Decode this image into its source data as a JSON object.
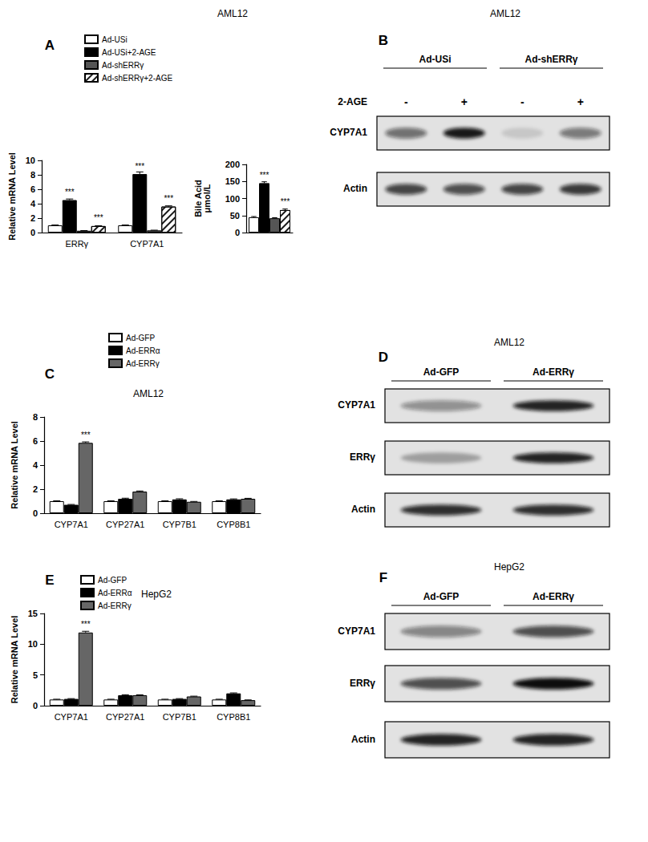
{
  "chart_data": [
    {
      "panel": "A",
      "title": "AML12",
      "type": "bar",
      "y_label": "Relative mRNA Level",
      "categories": [
        "ERRγ",
        "CYP7A1"
      ],
      "ylim": [
        0,
        10
      ],
      "yticks": [
        0,
        2,
        4,
        6,
        8,
        10
      ],
      "grid": false,
      "legend": "top-left",
      "series": [
        {
          "name": "Ad-USi",
          "color": "#ffffff",
          "values": [
            1,
            1
          ],
          "errors": [
            0.05,
            0.05
          ],
          "annotations": [
            null,
            null
          ]
        },
        {
          "name": "Ad-USi+2-AGE",
          "color": "#000000",
          "values": [
            4.5,
            8.1
          ],
          "errors": [
            0.15,
            0.3
          ],
          "annotations": [
            "***",
            "***"
          ]
        },
        {
          "name": "Ad-shERRγ",
          "color": "#555555",
          "values": [
            0.25,
            0.3
          ],
          "errors": [
            0.03,
            0.03
          ],
          "annotations": [
            null,
            null
          ]
        },
        {
          "name": "Ad-shERRγ+2-AGE",
          "color": "#ffffff",
          "marker": "hatched",
          "values": [
            0.9,
            3.6
          ],
          "errors": [
            0.05,
            0.1
          ],
          "annotations": [
            "***",
            "***"
          ]
        }
      ]
    },
    {
      "type": "bar",
      "y_label": "Bile Acid\nμmol/L",
      "categories": [
        null
      ],
      "ylim": [
        0,
        200
      ],
      "yticks": [
        0,
        50,
        100,
        150,
        200
      ],
      "grid": false,
      "legend": false,
      "series": [
        {
          "name": "Ad-USi",
          "color": "#ffffff",
          "values": [
            45
          ],
          "errors": [
            2
          ],
          "annotations": [
            null
          ]
        },
        {
          "name": "Ad-USi+2-AGE",
          "color": "#000000",
          "values": [
            145
          ],
          "errors": [
            4
          ],
          "annotations": [
            "***"
          ]
        },
        {
          "name": "Ad-shERRγ",
          "color": "#555555",
          "values": [
            42
          ],
          "errors": [
            1.5
          ],
          "annotations": [
            null
          ]
        },
        {
          "name": "Ad-shERRγ+2-AGE",
          "color": "#ffffff",
          "marker": "hatched",
          "values": [
            66
          ],
          "errors": [
            3
          ],
          "annotations": [
            "***"
          ]
        }
      ]
    },
    {
      "panel": "C",
      "title": "AML12",
      "type": "bar",
      "y_label": "Relative mRNA Level",
      "categories": [
        "CYP7A1",
        "CYP27A1",
        "CYP7B1",
        "CYP8B1"
      ],
      "ylim": [
        0,
        8
      ],
      "yticks": [
        0,
        2,
        4,
        6,
        8
      ],
      "grid": false,
      "legend": "top-left",
      "series": [
        {
          "name": "Ad-GFP",
          "color": "#ffffff",
          "values": [
            1,
            1,
            1,
            1
          ],
          "errors": [
            0.03,
            0.03,
            0.03,
            0.03
          ],
          "annotations": [
            null,
            null,
            null,
            null
          ]
        },
        {
          "name": "Ad-ERRα",
          "color": "#000000",
          "values": [
            0.7,
            1.2,
            1.15,
            1.15
          ],
          "errors": [
            0.03,
            0.05,
            0.05,
            0.04
          ],
          "annotations": [
            null,
            null,
            null,
            null
          ]
        },
        {
          "name": "Ad-ERRγ",
          "color": "#666666",
          "values": [
            5.85,
            1.8,
            0.95,
            1.2
          ],
          "errors": [
            0.08,
            0.05,
            0.03,
            0.04
          ],
          "annotations": [
            "***",
            null,
            null,
            null
          ]
        }
      ]
    },
    {
      "panel": "E",
      "title": "HepG2",
      "type": "bar",
      "y_label": "Relative mRNA Level",
      "categories": [
        "CYP7A1",
        "CYP27A1",
        "CYP7B1",
        "CYP8B1"
      ],
      "ylim": [
        0,
        15
      ],
      "yticks": [
        0,
        5,
        10,
        15
      ],
      "grid": false,
      "legend": "top-left",
      "series": [
        {
          "name": "Ad-GFP",
          "color": "#ffffff",
          "values": [
            1,
            1,
            1,
            1
          ],
          "errors": [
            0.05,
            0.05,
            0.05,
            0.05
          ],
          "annotations": [
            null,
            null,
            null,
            null
          ]
        },
        {
          "name": "Ad-ERRα",
          "color": "#000000",
          "values": [
            1.1,
            1.7,
            1.1,
            2.0
          ],
          "errors": [
            0.05,
            0.08,
            0.05,
            0.08
          ],
          "annotations": [
            null,
            null,
            null,
            null
          ]
        },
        {
          "name": "Ad-ERRγ",
          "color": "#666666",
          "values": [
            11.9,
            1.7,
            1.5,
            0.9
          ],
          "errors": [
            0.2,
            0.06,
            0.05,
            0.04
          ],
          "annotations": [
            "***",
            null,
            null,
            null
          ]
        }
      ]
    }
  ],
  "blots": [
    {
      "panel": "B",
      "title": "AML12",
      "treatment_label": "2-AGE",
      "lanes": [
        {
          "group": "Ad-USi",
          "treatment": "-"
        },
        {
          "group": "Ad-USi",
          "treatment": "+"
        },
        {
          "group": "Ad-shERRγ",
          "treatment": "-"
        },
        {
          "group": "Ad-shERRγ",
          "treatment": "+"
        }
      ],
      "rows": [
        {
          "label": "CYP7A1",
          "bands": [
            0.55,
            0.95,
            0.12,
            0.5
          ]
        },
        {
          "label": "Actin",
          "bands": [
            0.75,
            0.7,
            0.75,
            0.8
          ]
        }
      ]
    },
    {
      "panel": "D",
      "title": "AML12",
      "lanes": [
        {
          "group": "Ad-GFP"
        },
        {
          "group": "Ad-ERRγ"
        }
      ],
      "rows": [
        {
          "label": "CYP7A1",
          "bands": [
            0.4,
            0.9
          ]
        },
        {
          "label": "ERRγ",
          "bands": [
            0.3,
            0.9
          ]
        },
        {
          "label": "Actin",
          "bands": [
            0.85,
            0.85
          ]
        }
      ]
    },
    {
      "panel": "F",
      "title": "HepG2",
      "lanes": [
        {
          "group": "Ad-GFP"
        },
        {
          "group": "Ad-ERRγ"
        }
      ],
      "rows": [
        {
          "label": "CYP7A1",
          "bands": [
            0.45,
            0.7
          ]
        },
        {
          "label": "ERRγ",
          "bands": [
            0.7,
            1.0
          ]
        },
        {
          "label": "Actin",
          "bands": [
            0.9,
            0.9
          ]
        }
      ]
    }
  ]
}
